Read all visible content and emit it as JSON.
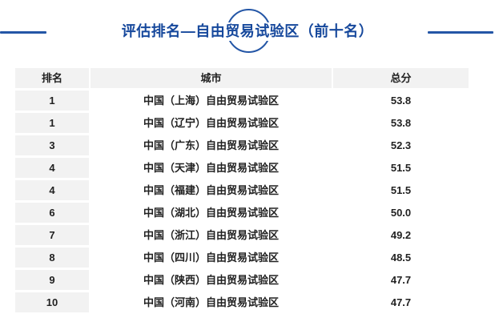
{
  "header": {
    "title": "评估排名—自由贸易试验区（前十名）"
  },
  "colors": {
    "accent_blue": "#2456a6",
    "title_blue": "#16489c",
    "row_gray": "#f2f2f2",
    "text_dark": "#212121"
  },
  "decorations": {
    "left_rule": "horizontal-rule",
    "right_rule": "horizontal-rule",
    "title_circle": "circle-outline"
  },
  "chart_data": {
    "type": "table",
    "title": "评估排名—自由贸易试验区（前十名）",
    "columns": [
      "排名",
      "城市",
      "总分"
    ],
    "rows": [
      {
        "rank": "1",
        "city": "中国（上海）自由贸易试验区",
        "score": "53.8"
      },
      {
        "rank": "1",
        "city": "中国（辽宁）自由贸易试验区",
        "score": "53.8"
      },
      {
        "rank": "3",
        "city": "中国（广东）自由贸易试验区",
        "score": "52.3"
      },
      {
        "rank": "4",
        "city": "中国（天津）自由贸易试验区",
        "score": "51.5"
      },
      {
        "rank": "4",
        "city": "中国（福建）自由贸易试验区",
        "score": "51.5"
      },
      {
        "rank": "6",
        "city": "中国（湖北）自由贸易试验区",
        "score": "50.0"
      },
      {
        "rank": "7",
        "city": "中国（浙江）自由贸易试验区",
        "score": "49.2"
      },
      {
        "rank": "8",
        "city": "中国（四川）自由贸易试验区",
        "score": "48.5"
      },
      {
        "rank": "9",
        "city": "中国（陕西）自由贸易试验区",
        "score": "47.7"
      },
      {
        "rank": "10",
        "city": "中国（河南）自由贸易试验区",
        "score": "47.7"
      }
    ]
  }
}
